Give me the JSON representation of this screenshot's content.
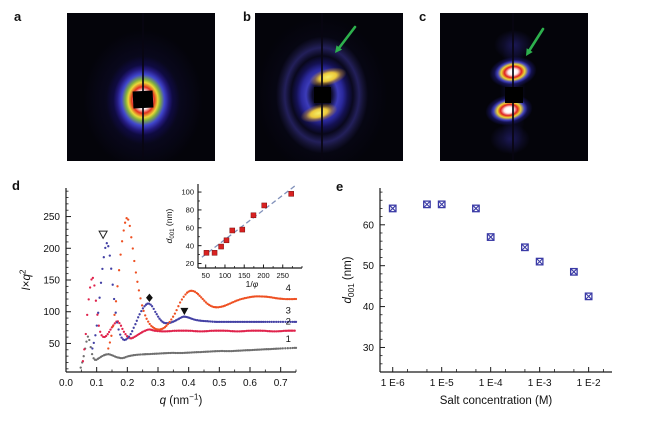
{
  "panels": {
    "a": {
      "label": "a"
    },
    "b": {
      "label": "b"
    },
    "c": {
      "label": "c"
    },
    "d": {
      "label": "d"
    },
    "e": {
      "label": "e"
    }
  },
  "colors": {
    "curve1_gray": "#6f6f6f",
    "curve2_red": "#e0234c",
    "curve3_blue": "#4340a4",
    "curve4_orange": "#ee5022",
    "inset_point_red": "#d92121",
    "inset_fit_line": "#8292bb",
    "e_point_blue": "#3b3ba6",
    "axis": "#1a1a1a",
    "arrow_green": "#2db04d"
  },
  "chart_data": [
    {
      "id": "d-main",
      "type": "line",
      "xlabel_parts": [
        {
          "t": "q",
          "i": true
        },
        {
          "t": " (nm"
        },
        {
          "t": "−1",
          "sup": true
        },
        {
          "t": ")"
        }
      ],
      "ylabel_parts": [
        {
          "t": "I",
          "i": true
        },
        {
          "t": "×"
        },
        {
          "t": "q",
          "i": true
        },
        {
          "t": "2",
          "sup": true
        }
      ],
      "xlim": [
        0,
        0.75
      ],
      "ylim": [
        5,
        295
      ],
      "xticks": {
        "values": [
          0,
          0.1,
          0.2,
          0.3,
          0.4,
          0.5,
          0.6,
          0.7
        ],
        "labels": [
          "0.0",
          "0.1",
          "0.2",
          "0.3",
          "0.4",
          "0.5",
          "0.6",
          "0.7"
        ]
      },
      "x_minor_step": 0.05,
      "yticks": {
        "values": [
          50,
          100,
          150,
          200,
          250
        ],
        "labels": [
          "50",
          "100",
          "150",
          "200",
          "250"
        ]
      },
      "y_minor_step": 10,
      "series": [
        {
          "name": "1",
          "color": "#6f6f6f",
          "points": [
            [
              0.048,
              12
            ],
            [
              0.056,
              26
            ],
            [
              0.064,
              46
            ],
            [
              0.072,
              61
            ],
            [
              0.079,
              48
            ],
            [
              0.087,
              30
            ],
            [
              0.096,
              24
            ],
            [
              0.108,
              27
            ],
            [
              0.122,
              31
            ],
            [
              0.138,
              33
            ],
            [
              0.152,
              31
            ],
            [
              0.168,
              28
            ],
            [
              0.185,
              27
            ],
            [
              0.205,
              30
            ],
            [
              0.23,
              32
            ],
            [
              0.26,
              33
            ],
            [
              0.3,
              34
            ],
            [
              0.34,
              35
            ],
            [
              0.38,
              35
            ],
            [
              0.42,
              36
            ],
            [
              0.46,
              37
            ],
            [
              0.5,
              38
            ],
            [
              0.54,
              38
            ],
            [
              0.58,
              39
            ],
            [
              0.62,
              40
            ],
            [
              0.66,
              41
            ],
            [
              0.7,
              42
            ],
            [
              0.75,
              43
            ]
          ]
        },
        {
          "name": "2",
          "color": "#e0234c",
          "points": [
            [
              0.055,
              22
            ],
            [
              0.063,
              55
            ],
            [
              0.071,
              105
            ],
            [
              0.079,
              140
            ],
            [
              0.086,
              154
            ],
            [
              0.092,
              143
            ],
            [
              0.099,
              110
            ],
            [
              0.107,
              78
            ],
            [
              0.115,
              64
            ],
            [
              0.124,
              60
            ],
            [
              0.135,
              64
            ],
            [
              0.148,
              74
            ],
            [
              0.16,
              82
            ],
            [
              0.168,
              85
            ],
            [
              0.177,
              80
            ],
            [
              0.188,
              69
            ],
            [
              0.2,
              61
            ],
            [
              0.212,
              58
            ],
            [
              0.226,
              61
            ],
            [
              0.242,
              66
            ],
            [
              0.258,
              70
            ],
            [
              0.272,
              72
            ],
            [
              0.29,
              70
            ],
            [
              0.32,
              69
            ],
            [
              0.36,
              70
            ],
            [
              0.4,
              70
            ],
            [
              0.44,
              69
            ],
            [
              0.48,
              70
            ],
            [
              0.52,
              70
            ],
            [
              0.56,
              69
            ],
            [
              0.6,
              70
            ],
            [
              0.64,
              70
            ],
            [
              0.68,
              69
            ],
            [
              0.72,
              70
            ],
            [
              0.75,
              70
            ]
          ]
        },
        {
          "name": "3",
          "color": "#4340a4",
          "points": [
            [
              0.086,
              42
            ],
            [
              0.094,
              58
            ],
            [
              0.102,
              85
            ],
            [
              0.11,
              125
            ],
            [
              0.118,
              165
            ],
            [
              0.126,
              195
            ],
            [
              0.133,
              208
            ],
            [
              0.14,
              198
            ],
            [
              0.148,
              165
            ],
            [
              0.157,
              120
            ],
            [
              0.166,
              85
            ],
            [
              0.176,
              65
            ],
            [
              0.187,
              56
            ],
            [
              0.198,
              57
            ],
            [
              0.21,
              64
            ],
            [
              0.224,
              78
            ],
            [
              0.24,
              96
            ],
            [
              0.255,
              108
            ],
            [
              0.268,
              113
            ],
            [
              0.28,
              109
            ],
            [
              0.292,
              99
            ],
            [
              0.305,
              89
            ],
            [
              0.318,
              83
            ],
            [
              0.332,
              82
            ],
            [
              0.348,
              84
            ],
            [
              0.365,
              88
            ],
            [
              0.382,
              92
            ],
            [
              0.398,
              91
            ],
            [
              0.415,
              88
            ],
            [
              0.435,
              86
            ],
            [
              0.46,
              85
            ],
            [
              0.49,
              84
            ],
            [
              0.53,
              84
            ],
            [
              0.57,
              84
            ],
            [
              0.61,
              84
            ],
            [
              0.65,
              84
            ],
            [
              0.7,
              84
            ],
            [
              0.75,
              84
            ]
          ]
        },
        {
          "name": "4",
          "color": "#ee5022",
          "points": [
            [
              0.138,
              42
            ],
            [
              0.148,
              62
            ],
            [
              0.158,
              95
            ],
            [
              0.168,
              140
            ],
            [
              0.178,
              190
            ],
            [
              0.188,
              228
            ],
            [
              0.197,
              247
            ],
            [
              0.206,
              240
            ],
            [
              0.215,
              210
            ],
            [
              0.225,
              172
            ],
            [
              0.236,
              138
            ],
            [
              0.248,
              110
            ],
            [
              0.26,
              92
            ],
            [
              0.274,
              80
            ],
            [
              0.288,
              74
            ],
            [
              0.302,
              72
            ],
            [
              0.318,
              74
            ],
            [
              0.335,
              82
            ],
            [
              0.355,
              97
            ],
            [
              0.375,
              117
            ],
            [
              0.395,
              130
            ],
            [
              0.41,
              133
            ],
            [
              0.425,
              130
            ],
            [
              0.442,
              122
            ],
            [
              0.46,
              113
            ],
            [
              0.478,
              108
            ],
            [
              0.495,
              107
            ],
            [
              0.515,
              109
            ],
            [
              0.54,
              114
            ],
            [
              0.565,
              119
            ],
            [
              0.59,
              122
            ],
            [
              0.615,
              124
            ],
            [
              0.64,
              124
            ],
            [
              0.665,
              123
            ],
            [
              0.69,
              121
            ],
            [
              0.715,
              120
            ],
            [
              0.75,
              120
            ]
          ]
        }
      ],
      "series_labels": [
        {
          "text": "4",
          "x": 0.725,
          "y": 133
        },
        {
          "text": "3",
          "x": 0.725,
          "y": 97
        },
        {
          "text": "2",
          "x": 0.725,
          "y": 80
        },
        {
          "text": "1",
          "x": 0.725,
          "y": 52
        }
      ],
      "markers": [
        {
          "shape": "triangle-down-open",
          "x": 0.121,
          "y": 222
        },
        {
          "shape": "diamond-filled",
          "x": 0.272,
          "y": 122
        },
        {
          "shape": "triangle-down-filled",
          "x": 0.386,
          "y": 101
        }
      ]
    },
    {
      "id": "d-inset",
      "type": "scatter",
      "xlabel_parts": [
        {
          "t": "1/"
        },
        {
          "t": "φ",
          "i": true
        }
      ],
      "ylabel_parts": [
        {
          "t": "d",
          "i": true
        },
        {
          "t": "001",
          "sub": true
        },
        {
          "t": " (nm)"
        }
      ],
      "xlim": [
        30,
        300
      ],
      "ylim": [
        15,
        109
      ],
      "xticks": {
        "values": [
          50,
          100,
          150,
          200,
          250
        ],
        "labels": [
          "50",
          "100",
          "150",
          "200",
          "250"
        ]
      },
      "x_minor_step": 25,
      "yticks": {
        "values": [
          20,
          40,
          60,
          80,
          100
        ],
        "labels": [
          "20",
          "40",
          "60",
          "80",
          "100"
        ]
      },
      "y_minor_step": 10,
      "marker": {
        "shape": "square-filled",
        "color": "#d92121",
        "size": 5
      },
      "points": [
        [
          52,
          32
        ],
        [
          73,
          32
        ],
        [
          90,
          39
        ],
        [
          104,
          46
        ],
        [
          119,
          57
        ],
        [
          145,
          58
        ],
        [
          174,
          74
        ],
        [
          202,
          85
        ],
        [
          272,
          98
        ]
      ],
      "fit_line": {
        "x1": 40,
        "y1": 27,
        "x2": 285,
        "y2": 108,
        "color": "#8292bb"
      }
    },
    {
      "id": "e",
      "type": "scatter",
      "xscale": "log",
      "xlabel_parts": [
        {
          "t": "Salt concentration (M)"
        }
      ],
      "ylabel_parts": [
        {
          "t": "d",
          "i": true
        },
        {
          "t": "001",
          "sub": true
        },
        {
          "t": " (nm)"
        }
      ],
      "xlim": [
        5.5e-07,
        0.03
      ],
      "ylim": [
        24,
        69
      ],
      "xticks": {
        "values": [
          1e-06,
          1e-05,
          0.0001,
          0.001,
          0.01
        ],
        "labels": [
          "1 E-6",
          "1 E-5",
          "1 E-4",
          "1 E-3",
          "1 E-2"
        ]
      },
      "x_minor_mults": [
        2,
        5
      ],
      "yticks": {
        "values": [
          30,
          40,
          50,
          60
        ],
        "labels": [
          "30",
          "40",
          "50",
          "60"
        ]
      },
      "y_minor_step": 2,
      "marker": {
        "shape": "square-x",
        "color": "#3b3ba6",
        "size": 6.5
      },
      "points": [
        [
          1e-06,
          64
        ],
        [
          5e-06,
          65
        ],
        [
          1e-05,
          65
        ],
        [
          5e-05,
          64
        ],
        [
          0.0001,
          57
        ],
        [
          0.0005,
          54.5
        ],
        [
          0.001,
          51
        ],
        [
          0.005,
          48.5
        ],
        [
          0.01,
          42.5
        ]
      ]
    }
  ]
}
